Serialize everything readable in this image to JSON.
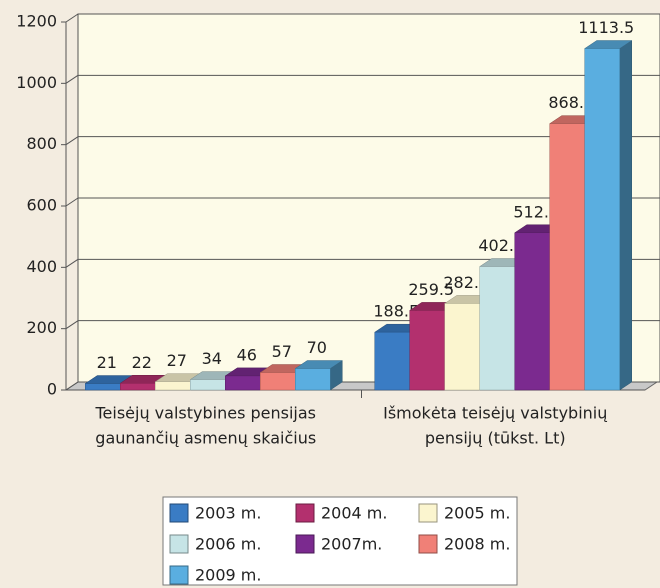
{
  "chart_data": {
    "type": "bar3d",
    "categories": [
      [
        "Teisėjų valstybines pensijas",
        "gaunančių asmenų skaičius"
      ],
      [
        "Išmokėta teisėjų valstybinių",
        "pensijų (tūkst. Lt)"
      ]
    ],
    "series": [
      {
        "name": "2003 m.",
        "color": "#3a7cc4",
        "values": [
          21,
          188.5
        ]
      },
      {
        "name": "2004 m.",
        "color": "#b3306e",
        "values": [
          22,
          259.5
        ]
      },
      {
        "name": "2005 m.",
        "color": "#fbf5cf",
        "values": [
          27,
          282.2
        ]
      },
      {
        "name": "2006 m.",
        "color": "#c6e4e6",
        "values": [
          34,
          402.6
        ]
      },
      {
        "name": "2007m.",
        "color": "#7b2a8f",
        "values": [
          46,
          512.7
        ]
      },
      {
        "name": "2008 m.",
        "color": "#f08077",
        "values": [
          57,
          868.6
        ]
      },
      {
        "name": "2009 m.",
        "color": "#5aaee0",
        "values": [
          70,
          1113.5
        ]
      }
    ],
    "ylim": [
      0,
      1200
    ],
    "yticks": [
      0,
      200,
      400,
      600,
      800,
      1000,
      1200
    ],
    "grid": true,
    "legend": "bottom"
  }
}
